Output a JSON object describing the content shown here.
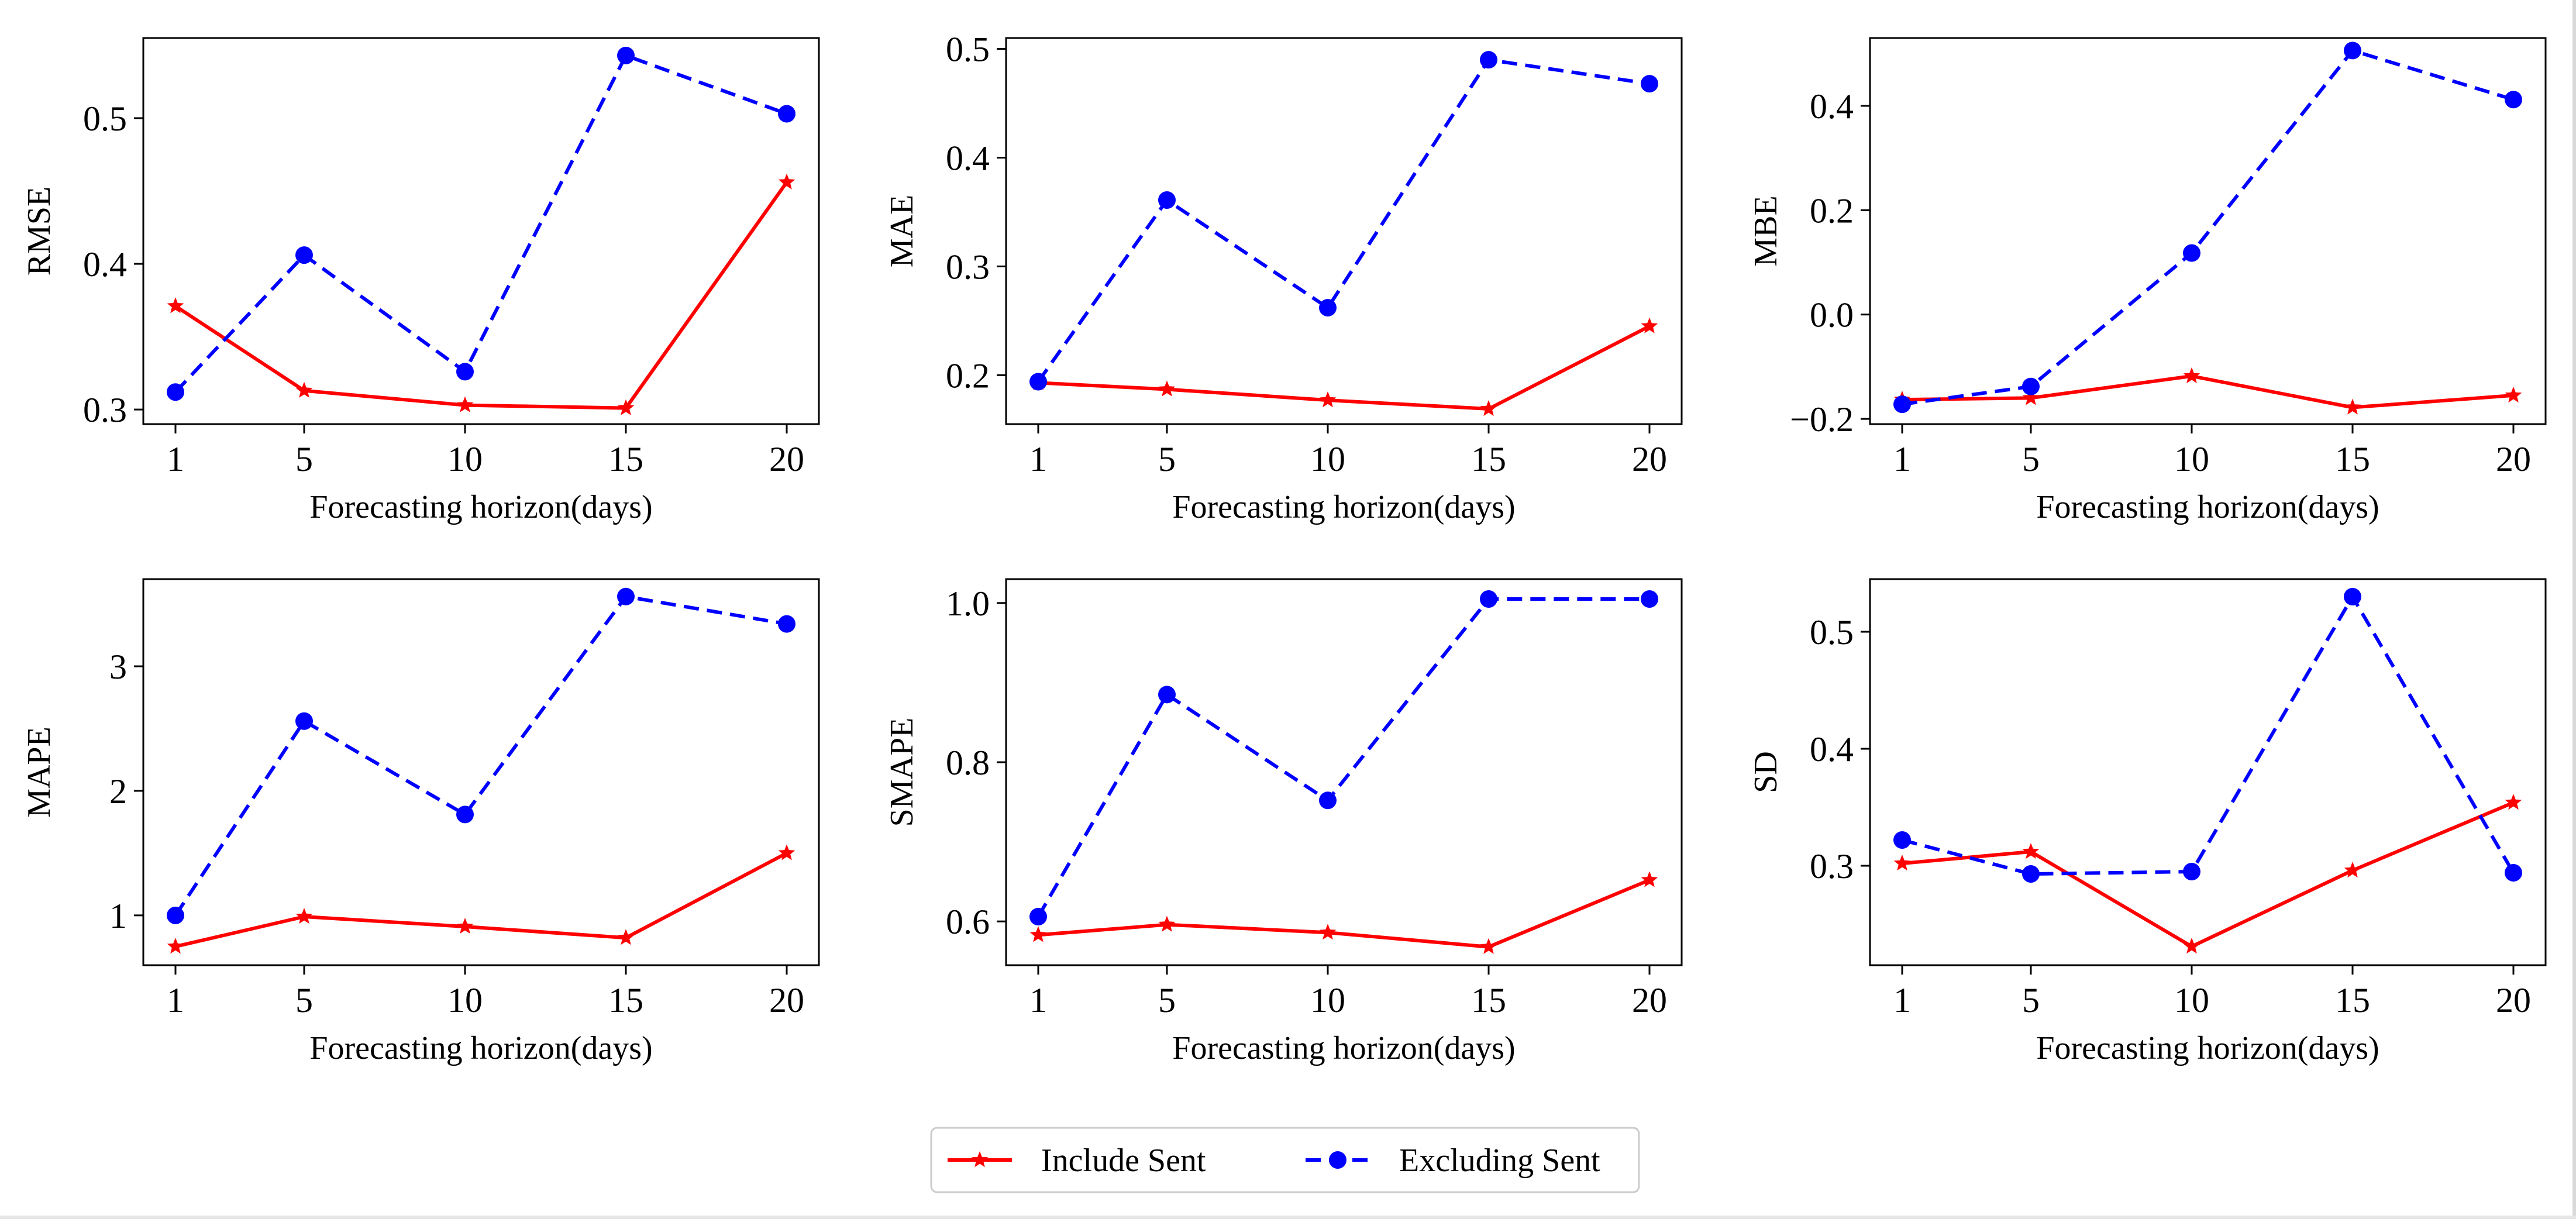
{
  "colors": {
    "include": "#ff0000",
    "exclude": "#0000ff",
    "axis": "#000000",
    "background": "#ffffff"
  },
  "legend": {
    "items": [
      {
        "label": "Include Sent",
        "color": "#ff0000",
        "style": "solid",
        "marker": "star"
      },
      {
        "label": "Excluding Sent",
        "color": "#0000ff",
        "style": "dashed",
        "marker": "circle"
      }
    ],
    "placement": "bottom-center"
  },
  "chart_data": [
    {
      "type": "line",
      "title": "",
      "xlabel": "Forecasting horizon(days)",
      "ylabel": "RMSE",
      "x": [
        1,
        5,
        10,
        15,
        20
      ],
      "x_ticks": [
        1,
        5,
        10,
        15,
        20
      ],
      "x_tick_labels": [
        "1",
        "5",
        "10",
        "15",
        "20"
      ],
      "ylim": [
        0.29,
        0.555
      ],
      "y_ticks": [
        0.3,
        0.4,
        0.5
      ],
      "y_tick_labels": [
        "0.3",
        "0.4",
        "0.5"
      ],
      "series": [
        {
          "name": "Include Sent",
          "values": [
            0.371,
            0.313,
            0.303,
            0.301,
            0.456
          ]
        },
        {
          "name": "Excluding Sent",
          "values": [
            0.312,
            0.406,
            0.326,
            0.543,
            0.503
          ]
        }
      ],
      "grid": false
    },
    {
      "type": "line",
      "title": "",
      "xlabel": "Forecasting horizon(days)",
      "ylabel": "MAE",
      "x": [
        1,
        5,
        10,
        15,
        20
      ],
      "x_ticks": [
        1,
        5,
        10,
        15,
        20
      ],
      "x_tick_labels": [
        "1",
        "5",
        "10",
        "15",
        "20"
      ],
      "ylim": [
        0.155,
        0.51
      ],
      "y_ticks": [
        0.2,
        0.3,
        0.4,
        0.5
      ],
      "y_tick_labels": [
        "0.2",
        "0.3",
        "0.4",
        "0.5"
      ],
      "series": [
        {
          "name": "Include Sent",
          "values": [
            0.193,
            0.187,
            0.177,
            0.169,
            0.245
          ]
        },
        {
          "name": "Excluding Sent",
          "values": [
            0.194,
            0.361,
            0.262,
            0.49,
            0.468
          ]
        }
      ],
      "grid": false
    },
    {
      "type": "line",
      "title": "",
      "xlabel": "Forecasting horizon(days)",
      "ylabel": "MBE",
      "x": [
        1,
        5,
        10,
        15,
        20
      ],
      "x_ticks": [
        1,
        5,
        10,
        15,
        20
      ],
      "x_tick_labels": [
        "1",
        "5",
        "10",
        "15",
        "20"
      ],
      "ylim": [
        -0.21,
        0.53
      ],
      "y_ticks": [
        -0.2,
        0.0,
        0.2,
        0.4
      ],
      "y_tick_labels": [
        "−0.2",
        "0.0",
        "0.2",
        "0.4"
      ],
      "series": [
        {
          "name": "Include Sent",
          "values": [
            -0.163,
            -0.16,
            -0.118,
            -0.178,
            -0.155
          ]
        },
        {
          "name": "Excluding Sent",
          "values": [
            -0.172,
            -0.138,
            0.118,
            0.506,
            0.412
          ]
        }
      ],
      "grid": false
    },
    {
      "type": "line",
      "title": "",
      "xlabel": "Forecasting horizon(days)",
      "ylabel": "MAPE",
      "x": [
        1,
        5,
        10,
        15,
        20
      ],
      "x_ticks": [
        1,
        5,
        10,
        15,
        20
      ],
      "x_tick_labels": [
        "1",
        "5",
        "10",
        "15",
        "20"
      ],
      "ylim": [
        0.6,
        3.7
      ],
      "y_ticks": [
        1,
        2,
        3
      ],
      "y_tick_labels": [
        "1",
        "2",
        "3"
      ],
      "series": [
        {
          "name": "Include Sent",
          "values": [
            0.75,
            0.99,
            0.91,
            0.82,
            1.5
          ]
        },
        {
          "name": "Excluding Sent",
          "values": [
            1.0,
            2.56,
            1.81,
            3.56,
            3.34
          ]
        }
      ],
      "grid": false
    },
    {
      "type": "line",
      "title": "",
      "xlabel": "Forecasting horizon(days)",
      "ylabel": "SMAPE",
      "x": [
        1,
        5,
        10,
        15,
        20
      ],
      "x_ticks": [
        1,
        5,
        10,
        15,
        20
      ],
      "x_tick_labels": [
        "1",
        "5",
        "10",
        "15",
        "20"
      ],
      "ylim": [
        0.545,
        1.03
      ],
      "y_ticks": [
        0.6,
        0.8,
        1.0
      ],
      "y_tick_labels": [
        "0.6",
        "0.8",
        "1.0"
      ],
      "series": [
        {
          "name": "Include Sent",
          "values": [
            0.583,
            0.596,
            0.586,
            0.568,
            0.652
          ]
        },
        {
          "name": "Excluding Sent",
          "values": [
            0.606,
            0.885,
            0.752,
            1.005,
            1.005
          ]
        }
      ],
      "grid": false
    },
    {
      "type": "line",
      "title": "",
      "xlabel": "Forecasting horizon(days)",
      "ylabel": "SD",
      "x": [
        1,
        5,
        10,
        15,
        20
      ],
      "x_ticks": [
        1,
        5,
        10,
        15,
        20
      ],
      "x_tick_labels": [
        "1",
        "5",
        "10",
        "15",
        "20"
      ],
      "ylim": [
        0.215,
        0.545
      ],
      "y_ticks": [
        0.3,
        0.4,
        0.5
      ],
      "y_tick_labels": [
        "0.3",
        "0.4",
        "0.5"
      ],
      "series": [
        {
          "name": "Include Sent",
          "values": [
            0.302,
            0.312,
            0.231,
            0.296,
            0.354
          ]
        },
        {
          "name": "Excluding Sent",
          "values": [
            0.322,
            0.293,
            0.295,
            0.53,
            0.294
          ]
        }
      ],
      "grid": false
    }
  ]
}
